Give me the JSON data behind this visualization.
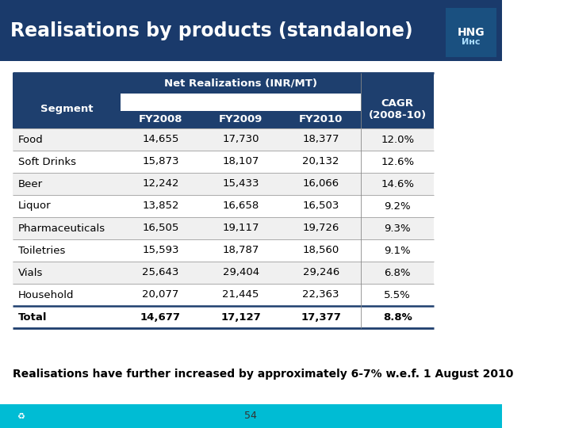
{
  "title": "Realisations by products (standalone)",
  "title_bg": "#1a3a6b",
  "title_color": "#ffffff",
  "header1": "Net Realizations (INR/MT)",
  "header2": "CAGR\n(2008-10)",
  "col_headers": [
    "FY2008",
    "FY2009",
    "FY2010"
  ],
  "col_segment": "Segment",
  "rows": [
    [
      "Food",
      "14,655",
      "17,730",
      "18,377",
      "12.0%"
    ],
    [
      "Soft Drinks",
      "15,873",
      "18,107",
      "20,132",
      "12.6%"
    ],
    [
      "Beer",
      "12,242",
      "15,433",
      "16,066",
      "14.6%"
    ],
    [
      "Liquor",
      "13,852",
      "16,658",
      "16,503",
      "9.2%"
    ],
    [
      "Pharmaceuticals",
      "16,505",
      "19,117",
      "19,726",
      "9.3%"
    ],
    [
      "Toiletries",
      "15,593",
      "18,787",
      "18,560",
      "9.1%"
    ],
    [
      "Vials",
      "25,643",
      "29,404",
      "29,246",
      "6.8%"
    ],
    [
      "Household",
      "20,077",
      "21,445",
      "22,363",
      "5.5%"
    ]
  ],
  "total_row": [
    "Total",
    "14,677",
    "17,127",
    "17,377",
    "8.8%"
  ],
  "footer_text": "Realisations have further increased by approximately 6-7% w.e.f. 1 August 2010",
  "page_num": "54",
  "header_bg": "#1e3f6e",
  "subheader_bg": "#1e3f6e",
  "table_border_color": "#1e3f6e",
  "bottom_bar_color": "#00bcd4",
  "text_color_dark": "#000000",
  "text_color_header": "#ffffff",
  "logo_bg": "#1a3a6b",
  "logo_text_color": "#ffffff"
}
